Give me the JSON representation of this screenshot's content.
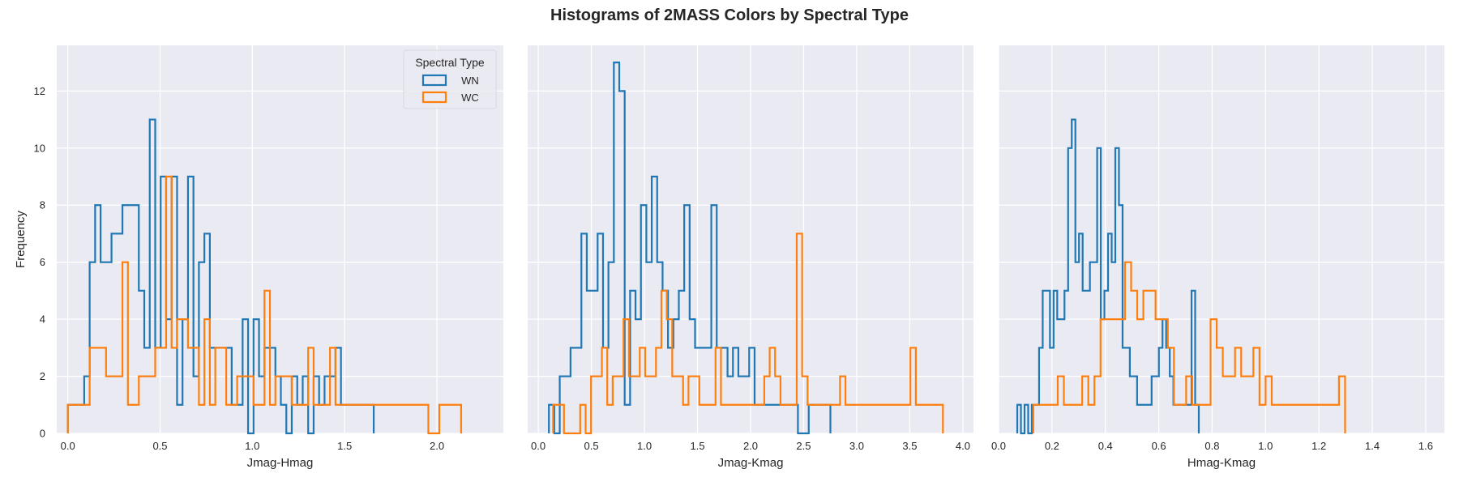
{
  "title": "Histograms of 2MASS Colors by Spectral Type",
  "colors": {
    "WN": "#1f77b4",
    "WC": "#ff7f0e",
    "panel_bg": "#eaeaf2",
    "grid": "#ffffff"
  },
  "legend": {
    "title": "Spectral Type",
    "entries": [
      "WN",
      "WC"
    ],
    "placement": "upper-right of first panel"
  },
  "chart_data": [
    {
      "type": "histogram-step",
      "xlabel": "Jmag-Hmag",
      "ylabel": "Frequency",
      "xlim": [
        -0.06,
        2.36
      ],
      "ylim": [
        0,
        13.6
      ],
      "xticks": [
        0.0,
        0.5,
        1.0,
        1.5,
        2.0
      ],
      "xtick_labels": [
        "0.0",
        "0.5",
        "1.0",
        "1.5",
        "2.0"
      ],
      "yticks": [
        0,
        2,
        4,
        6,
        8,
        10,
        12
      ],
      "ytick_labels": [
        "0",
        "2",
        "4",
        "6",
        "8",
        "10",
        "12"
      ],
      "series": [
        {
          "name": "WN",
          "x_start": 0.0,
          "bin_width": 0.0296,
          "counts": [
            1,
            1,
            1,
            2,
            6,
            8,
            6,
            6,
            7,
            7,
            8,
            8,
            8,
            5,
            3,
            11,
            3,
            9,
            4,
            9,
            1,
            4,
            9,
            2,
            6,
            7,
            3,
            3,
            3,
            3,
            1,
            1,
            4,
            0,
            4,
            2,
            3,
            3,
            2,
            1,
            0,
            2,
            1,
            2,
            0,
            2,
            1,
            2,
            2,
            3,
            1,
            1,
            1,
            1,
            1,
            1
          ]
        },
        {
          "name": "WC",
          "x_start": 0.0,
          "bin_width": 0.0296,
          "counts": [
            1,
            1,
            1,
            1,
            3,
            3,
            3,
            2,
            2,
            2,
            6,
            1,
            1,
            2,
            2,
            2,
            3,
            3,
            9,
            3,
            4,
            4,
            3,
            3,
            1,
            4,
            1,
            3,
            3,
            1,
            1,
            2,
            2,
            2,
            1,
            1,
            5,
            1,
            2,
            2,
            2,
            1,
            1,
            1,
            3,
            1,
            1,
            1,
            3,
            1,
            1,
            1,
            1,
            1,
            1,
            1,
            1,
            1,
            1,
            1,
            1,
            1,
            1,
            1,
            1,
            1,
            0,
            0,
            1,
            1,
            1,
            1
          ]
        }
      ]
    },
    {
      "type": "histogram-step",
      "xlabel": "Jmag-Kmag",
      "xlim": [
        -0.1,
        4.1
      ],
      "ylim": [
        0,
        13.6
      ],
      "xticks": [
        0.0,
        0.5,
        1.0,
        1.5,
        2.0,
        2.5,
        3.0,
        3.5,
        4.0
      ],
      "xtick_labels": [
        "0.0",
        "0.5",
        "1.0",
        "1.5",
        "2.0",
        "2.5",
        "3.0",
        "3.5",
        "4.0"
      ],
      "series": [
        {
          "name": "WN",
          "x_start": 0.1,
          "bin_width": 0.051,
          "counts": [
            1,
            0,
            2,
            2,
            3,
            3,
            7,
            5,
            5,
            7,
            3,
            6,
            13,
            12,
            1,
            5,
            4,
            8,
            6,
            9,
            6,
            5,
            3,
            4,
            5,
            8,
            4,
            3,
            3,
            3,
            8,
            3,
            3,
            2,
            3,
            2,
            2,
            3,
            1,
            1,
            1,
            1,
            1,
            1,
            1,
            1,
            0,
            0,
            1,
            1,
            1,
            1
          ]
        },
        {
          "name": "WC",
          "x_start": 0.14,
          "bin_width": 0.051,
          "counts": [
            1,
            1,
            0,
            0,
            0,
            1,
            0,
            2,
            2,
            3,
            1,
            2,
            2,
            4,
            2,
            2,
            3,
            2,
            2,
            3,
            5,
            4,
            2,
            2,
            1,
            2,
            2,
            1,
            1,
            1,
            3,
            1,
            1,
            1,
            1,
            1,
            1,
            1,
            1,
            2,
            3,
            2,
            1,
            1,
            1,
            7,
            2,
            1,
            1,
            1,
            1,
            1,
            1,
            2,
            1,
            1,
            1,
            1,
            1,
            1,
            1,
            1,
            1,
            1,
            1,
            1,
            3,
            1,
            1,
            1,
            1,
            1
          ]
        }
      ]
    },
    {
      "type": "histogram-step",
      "xlabel": "Hmag-Kmag",
      "xlim": [
        0.0,
        1.67
      ],
      "ylim": [
        0,
        13.6
      ],
      "xticks": [
        0.0,
        0.2,
        0.4,
        0.6,
        0.8,
        1.0,
        1.2,
        1.4,
        1.6
      ],
      "xtick_labels": [
        "0.0",
        "0.2",
        "0.4",
        "0.6",
        "0.8",
        "1.0",
        "1.2",
        "1.4",
        "1.6"
      ],
      "series": [
        {
          "name": "WN",
          "x_start": 0.07,
          "bin_width": 0.0136,
          "counts": [
            1,
            0,
            1,
            0,
            1,
            1,
            3,
            5,
            5,
            3,
            5,
            4,
            4,
            5,
            10,
            11,
            6,
            7,
            5,
            5,
            6,
            6,
            10,
            4,
            5,
            7,
            6,
            10,
            8,
            3,
            3,
            2,
            2,
            1,
            1,
            1,
            1,
            2,
            2,
            3,
            4,
            3,
            2,
            1,
            1,
            1,
            1,
            1,
            5,
            1
          ]
        },
        {
          "name": "WC",
          "x_start": 0.13,
          "bin_width": 0.0229,
          "counts": [
            1,
            1,
            1,
            1,
            2,
            1,
            1,
            1,
            2,
            1,
            2,
            4,
            4,
            4,
            4,
            6,
            5,
            4,
            5,
            5,
            4,
            4,
            3,
            1,
            1,
            2,
            1,
            1,
            1,
            4,
            3,
            2,
            2,
            3,
            2,
            2,
            3,
            1,
            2,
            1,
            1,
            1,
            1,
            1,
            1,
            1,
            1,
            1,
            1,
            1,
            2
          ]
        }
      ]
    }
  ]
}
